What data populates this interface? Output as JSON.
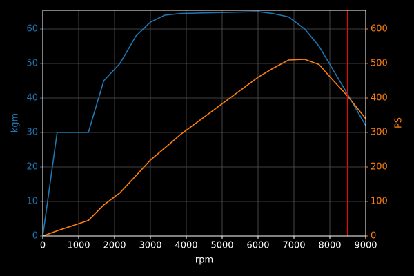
{
  "chart_data": {
    "type": "line",
    "xlabel": "rpm",
    "ylabel": "kgm",
    "y2label": "PS",
    "x": [
      0,
      400,
      1270,
      1700,
      2150,
      2600,
      3000,
      3400,
      3850,
      6000,
      6400,
      6850,
      7300,
      7700,
      8100,
      8500,
      9000
    ],
    "series": [
      {
        "color": "#1f77b4",
        "values": [
          0,
          30,
          30,
          45,
          50,
          58,
          62,
          64,
          64.5,
          65,
          64.5,
          63.5,
          60,
          55,
          48,
          41,
          32
        ]
      },
      {
        "color": "#ff7f0e",
        "axis": "y2",
        "values": [
          0,
          15,
          45,
          90,
          125,
          175,
          220,
          255,
          295,
          460,
          485,
          510,
          512,
          497,
          450,
          405,
          340
        ]
      }
    ],
    "vlines": [
      {
        "x": 8500,
        "color": "#ff0000"
      }
    ],
    "xlim": [
      0,
      9000
    ],
    "xticks": [
      0,
      1000,
      2000,
      3000,
      4000,
      5000,
      6000,
      7000,
      8000,
      9000
    ],
    "ylim": [
      0,
      65.4
    ],
    "yticks": [
      0,
      10,
      20,
      30,
      40,
      50,
      60
    ],
    "y2lim": [
      0,
      654
    ],
    "y2ticks": [
      0,
      100,
      200,
      300,
      400,
      500,
      600
    ],
    "grid": true
  }
}
